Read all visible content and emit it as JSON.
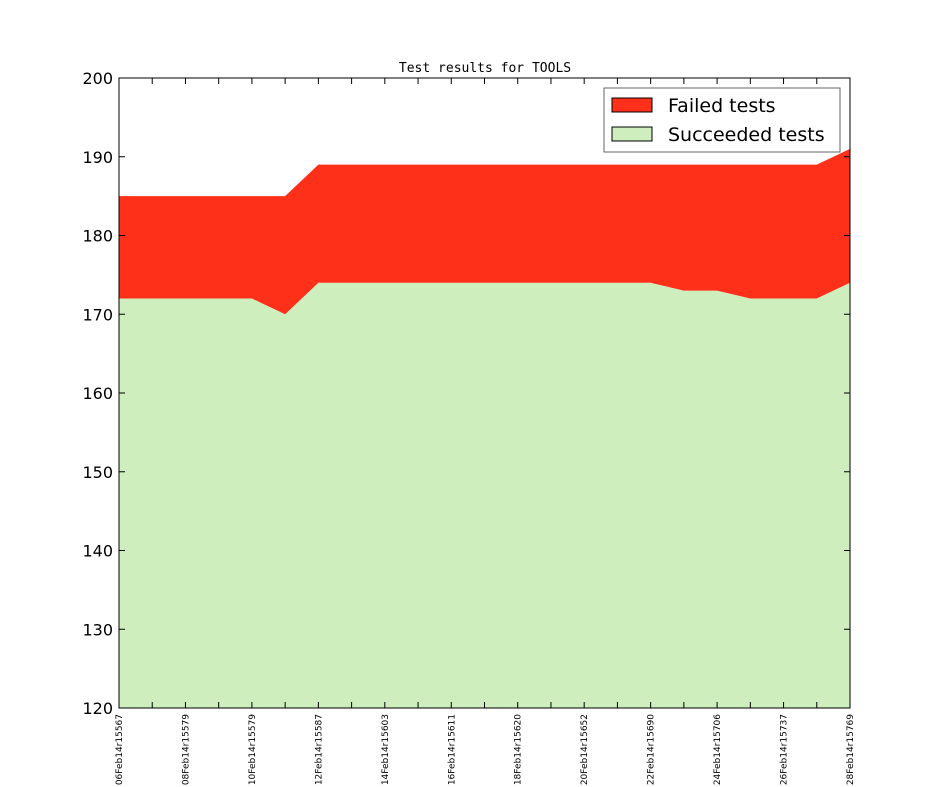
{
  "chart_data": {
    "type": "area",
    "title": "Test results for TOOLS",
    "xlabel": "",
    "ylabel": "",
    "ylim": [
      120,
      200
    ],
    "yticks": [
      120,
      130,
      140,
      150,
      160,
      170,
      180,
      190,
      200
    ],
    "categories": [
      "06Feb14r15567",
      "08Feb14r15579",
      "10Feb14r15579",
      "12Feb14r15587",
      "14Feb14r15603",
      "16Feb14r15611",
      "18Feb14r15620",
      "20Feb14r15652",
      "22Feb14r15690",
      "24Feb14r15706",
      "26Feb14r15737",
      "28Feb14r15769"
    ],
    "x": [
      0,
      0.5,
      1,
      1.5,
      2,
      2.5,
      3,
      3.5,
      4,
      4.5,
      5,
      5.5,
      6,
      6.5,
      7,
      7.5,
      8,
      8.5,
      9,
      9.5,
      10,
      10.5,
      11
    ],
    "series": [
      {
        "name": "Succeeded tests",
        "color": "#ceeebd",
        "values": [
          172,
          172,
          172,
          172,
          172,
          170,
          174,
          174,
          174,
          174,
          174,
          174,
          174,
          174,
          174,
          174,
          174,
          173,
          173,
          172,
          172,
          172,
          174
        ]
      },
      {
        "name": "Failed tests",
        "color": "#ff3019",
        "values": [
          13,
          13,
          13,
          13,
          13,
          15,
          15,
          15,
          15,
          15,
          15,
          15,
          15,
          15,
          15,
          15,
          15,
          16,
          16,
          17,
          17,
          17,
          17
        ]
      }
    ],
    "grid": false,
    "legend": "top-right"
  }
}
